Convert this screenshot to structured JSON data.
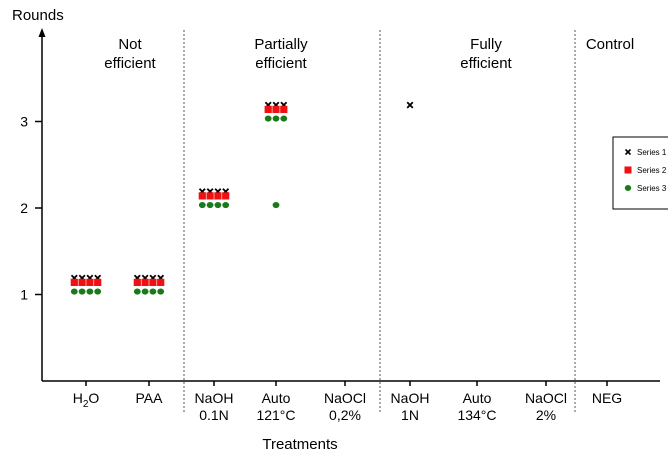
{
  "chart_data": {
    "type": "scatter",
    "ylabel": "Rounds",
    "xlabel": "Treatments",
    "yticks": [
      "1",
      "2",
      "3"
    ],
    "ylim": [
      0,
      4.1
    ],
    "categories": [
      {
        "line1": "H",
        "sub": "2",
        "tail": "O",
        "line2": ""
      },
      {
        "line1": "PAA",
        "line2": ""
      },
      {
        "line1": "NaOH",
        "line2": "0.1N"
      },
      {
        "line1": "Auto",
        "line2": "121°C"
      },
      {
        "line1": "NaOCl",
        "line2": "0,2%"
      },
      {
        "line1": "NaOH",
        "line2": "1N"
      },
      {
        "line1": "Auto",
        "line2": "134°C"
      },
      {
        "line1": "NaOCl",
        "line2": "2%"
      },
      {
        "line1": "NEG",
        "line2": ""
      }
    ],
    "groups": [
      {
        "lines": [
          "Not",
          "efficient"
        ]
      },
      {
        "lines": [
          "Partially",
          "efficient"
        ]
      },
      {
        "lines": [
          "Fully",
          "efficient"
        ]
      },
      {
        "lines": [
          "Control"
        ]
      }
    ],
    "series": [
      {
        "name": "Series 1",
        "marker": "x",
        "color": "#000000",
        "points": [
          [
            0,
            1,
            4
          ],
          [
            1,
            1,
            4
          ],
          [
            2,
            2,
            4
          ],
          [
            3,
            3,
            3
          ],
          [
            5,
            3,
            1
          ]
        ]
      },
      {
        "name": "Series 2",
        "marker": "square",
        "color": "#ee1111",
        "points": [
          [
            0,
            1,
            4
          ],
          [
            1,
            1,
            4
          ],
          [
            2,
            2,
            4
          ],
          [
            3,
            3,
            3
          ]
        ]
      },
      {
        "name": "Series 3",
        "marker": "circle",
        "color": "#1a7a1a",
        "points": [
          [
            0,
            1,
            4
          ],
          [
            1,
            1,
            4
          ],
          [
            2,
            2,
            4
          ],
          [
            3,
            3,
            3
          ],
          [
            3,
            2,
            1
          ]
        ]
      }
    ]
  }
}
